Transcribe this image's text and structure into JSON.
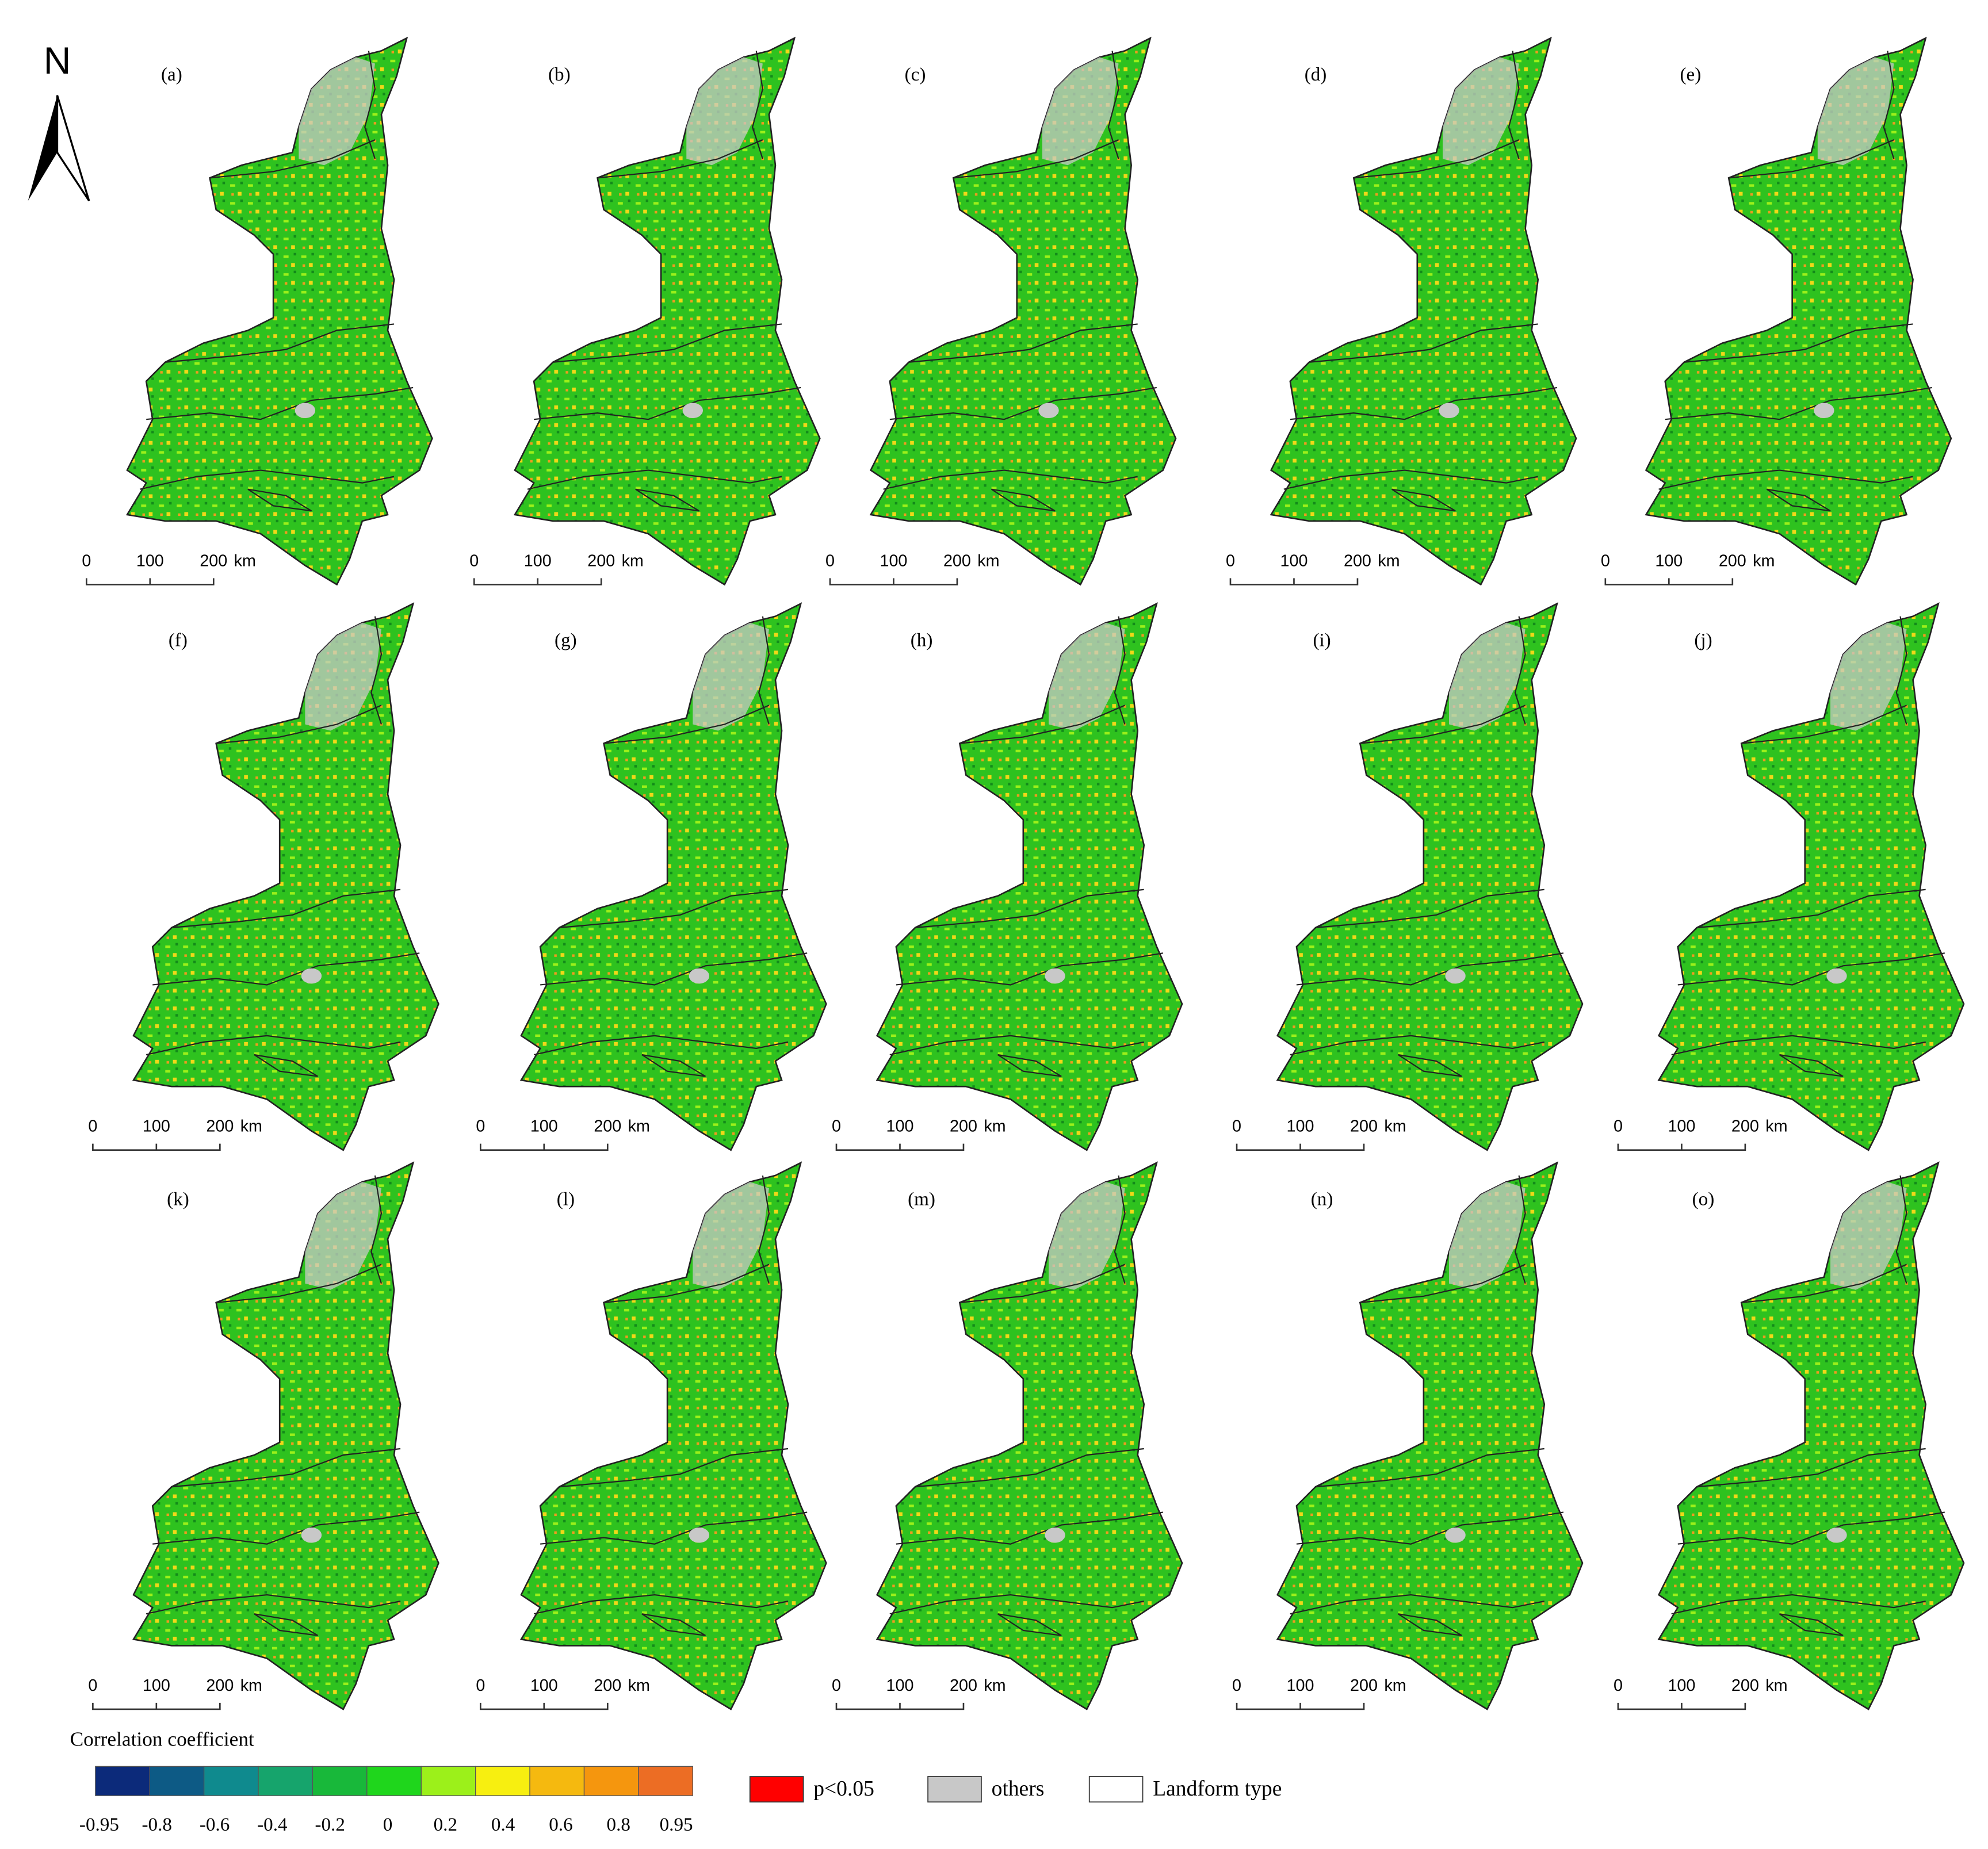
{
  "north_arrow": "N",
  "panels": [
    "(a)",
    "(b)",
    "(c)",
    "(d)",
    "(e)",
    "(f)",
    "(g)",
    "(h)",
    "(i)",
    "(j)",
    "(k)",
    "(l)",
    "(m)",
    "(n)",
    "(o)"
  ],
  "scale_bar": {
    "ticks": [
      "0",
      "100",
      "200"
    ],
    "unit": "km"
  },
  "legend": {
    "title": "Correlation coefficient",
    "colorbar": {
      "ticks": [
        -0.95,
        -0.8,
        -0.6,
        -0.4,
        -0.2,
        0,
        0.2,
        0.4,
        0.6,
        0.8,
        0.95
      ],
      "colors": [
        "#0c2a7a",
        "#0d5a85",
        "#0f8a8e",
        "#16a46c",
        "#18b83a",
        "#1fd61c",
        "#9cf01a",
        "#f7ef10",
        "#f5b90f",
        "#f5960e",
        "#ec6d24"
      ]
    },
    "items": [
      {
        "label": "p<0.05",
        "color": "#ff0000"
      },
      {
        "label": "others",
        "color": "#c8c8c8"
      },
      {
        "label": "Landform type",
        "color": "#ffffff"
      }
    ]
  }
}
